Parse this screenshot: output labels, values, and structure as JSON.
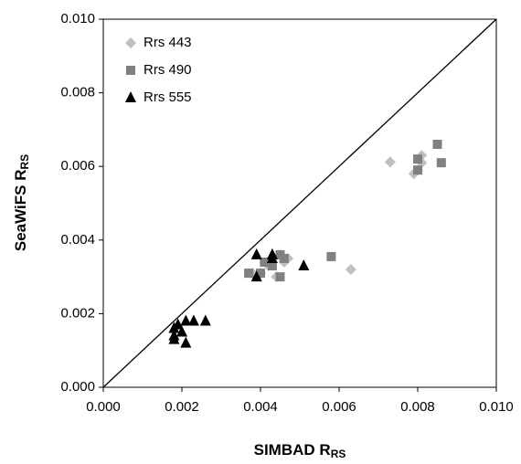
{
  "chart_data": {
    "type": "scatter",
    "x_label": {
      "text": "SIMBAD R",
      "sub": "RS"
    },
    "y_label": {
      "text": "SeaWiFS R",
      "sub": "RS"
    },
    "xlim": [
      0,
      0.01
    ],
    "ylim": [
      0,
      0.01
    ],
    "xticks": [
      {
        "value": 0,
        "label": "0.000"
      },
      {
        "value": 0.002,
        "label": "0.002"
      },
      {
        "value": 0.004,
        "label": "0.004"
      },
      {
        "value": 0.006,
        "label": "0.006"
      },
      {
        "value": 0.008,
        "label": "0.008"
      },
      {
        "value": 0.01,
        "label": "0.010"
      }
    ],
    "yticks": [
      {
        "value": 0,
        "label": "0.000"
      },
      {
        "value": 0.002,
        "label": "0.002"
      },
      {
        "value": 0.004,
        "label": "0.004"
      },
      {
        "value": 0.006,
        "label": "0.006"
      },
      {
        "value": 0.008,
        "label": "0.008"
      },
      {
        "value": 0.01,
        "label": "0.010"
      }
    ],
    "one_to_one_line": true,
    "legend": "top-left",
    "series": [
      {
        "name": "Rrs 443",
        "color": "#c0c0c0",
        "marker": "diamond",
        "x": [
          0.0073,
          0.0079,
          0.0081,
          0.0081,
          0.008,
          0.0063,
          0.0044,
          0.0046,
          0.0047,
          0.0042,
          0.004,
          0.0045,
          0.0038
        ],
        "values": [
          0.00612,
          0.0058,
          0.0063,
          0.0061,
          0.0059,
          0.0032,
          0.003,
          0.0034,
          0.0035,
          0.0033,
          0.0031,
          0.0036,
          0.0031
        ]
      },
      {
        "name": "Rrs 490",
        "color": "#808080",
        "marker": "square",
        "x": [
          0.0085,
          0.008,
          0.0086,
          0.008,
          0.0058,
          0.0045,
          0.0046,
          0.0043,
          0.0037,
          0.0045,
          0.004,
          0.0041
        ],
        "values": [
          0.0066,
          0.0062,
          0.0061,
          0.0059,
          0.00355,
          0.0036,
          0.0035,
          0.0033,
          0.0031,
          0.003,
          0.0031,
          0.0034
        ]
      },
      {
        "name": "Rrs 555",
        "color": "#000000",
        "marker": "triangle",
        "x": [
          0.0043,
          0.0039,
          0.0043,
          0.0051,
          0.0039,
          0.0026,
          0.0023,
          0.0021,
          0.0018,
          0.0019,
          0.0018,
          0.002,
          0.0018,
          0.0021
        ],
        "values": [
          0.0036,
          0.0036,
          0.0035,
          0.0033,
          0.003,
          0.0018,
          0.0018,
          0.0018,
          0.0016,
          0.0017,
          0.0014,
          0.0015,
          0.0013,
          0.0012
        ]
      }
    ]
  }
}
